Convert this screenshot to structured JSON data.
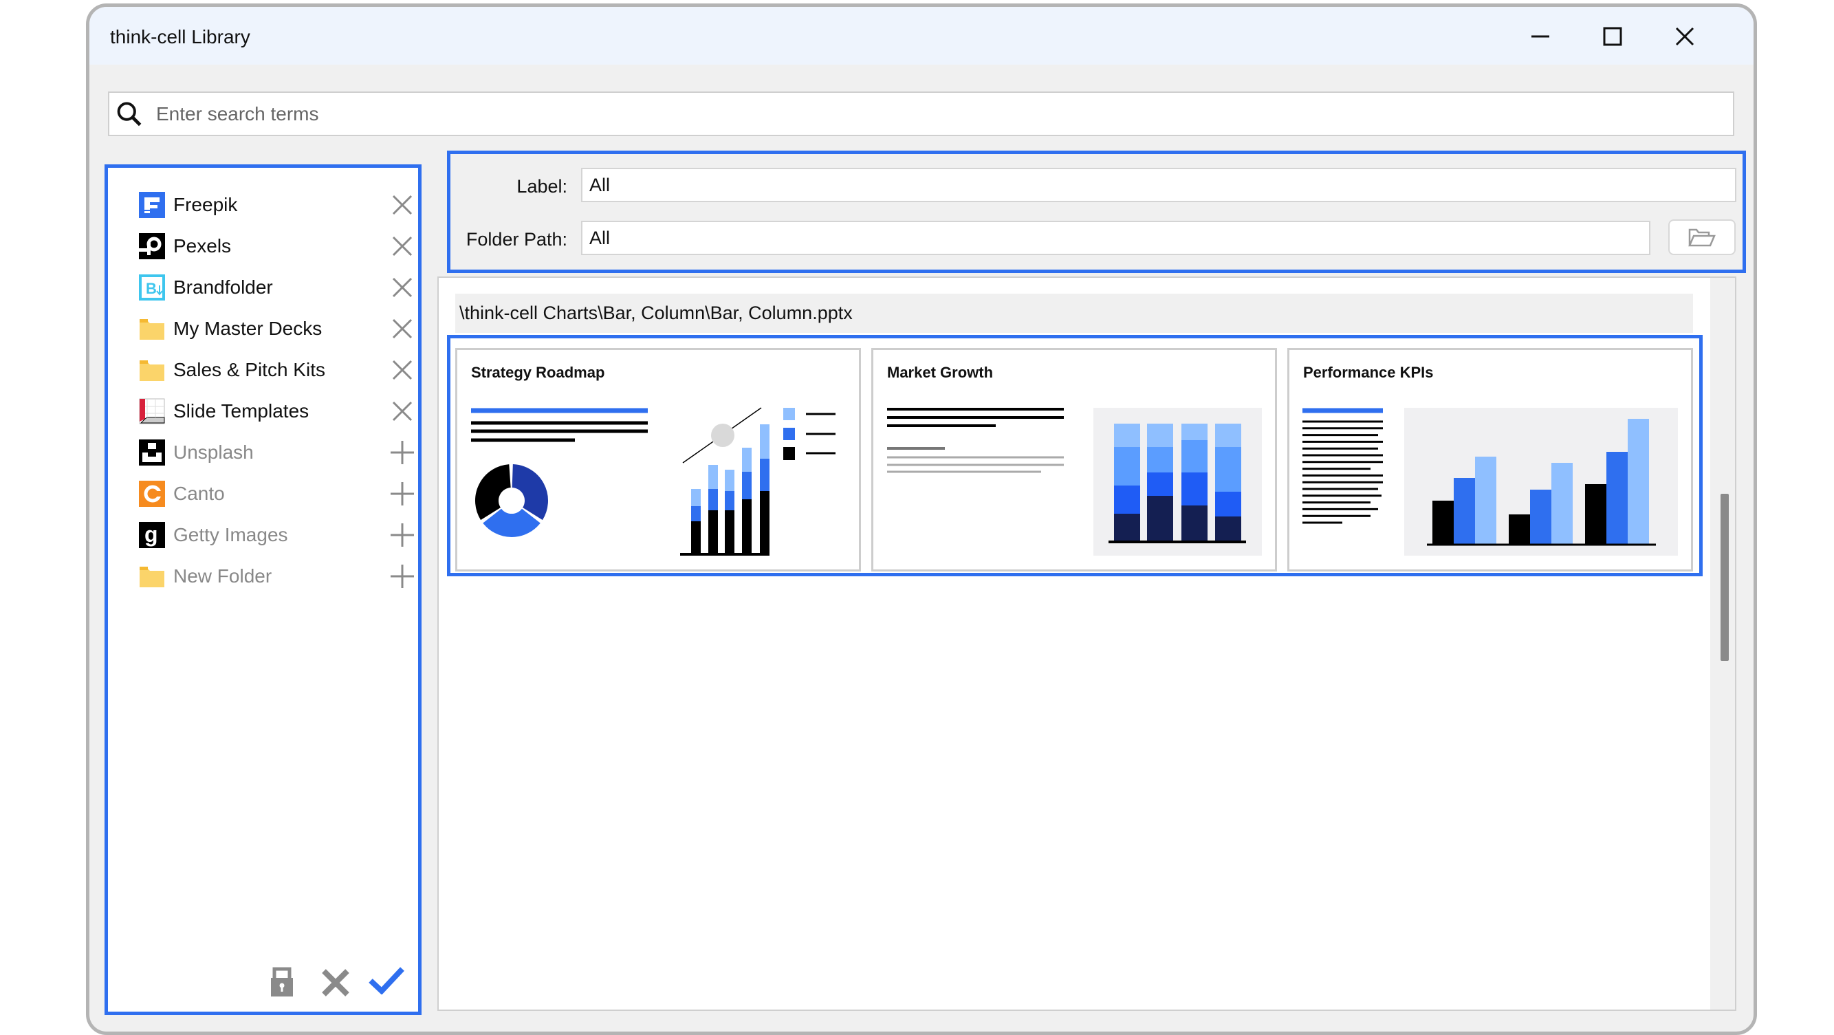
{
  "window": {
    "title": "think-cell Library",
    "controls": [
      "minimize-icon",
      "maximize-icon",
      "close-icon"
    ]
  },
  "search": {
    "placeholder": "Enter search terms",
    "value": ""
  },
  "sources": [
    {
      "label": "Freepik",
      "icon": "freepik-icon",
      "action": "remove",
      "enabled": true
    },
    {
      "label": "Pexels",
      "icon": "pexels-icon",
      "action": "remove",
      "enabled": true
    },
    {
      "label": "Brandfolder",
      "icon": "brandfolder-icon",
      "action": "remove",
      "enabled": true
    },
    {
      "label": "My Master Decks",
      "icon": "folder-icon",
      "action": "remove",
      "enabled": true
    },
    {
      "label": "Sales & Pitch Kits",
      "icon": "folder-icon",
      "action": "remove",
      "enabled": true
    },
    {
      "label": "Slide Templates",
      "icon": "slide-templates-icon",
      "action": "remove",
      "enabled": true
    },
    {
      "label": "Unsplash",
      "icon": "unsplash-icon",
      "action": "add",
      "enabled": false
    },
    {
      "label": "Canto",
      "icon": "canto-icon",
      "action": "add",
      "enabled": false
    },
    {
      "label": "Getty Images",
      "icon": "getty-images-icon",
      "action": "add",
      "enabled": false
    },
    {
      "label": "New Folder",
      "icon": "folder-icon",
      "action": "add",
      "enabled": false
    }
  ],
  "left_toolbar": [
    "lock-icon",
    "cancel-icon",
    "confirm-icon"
  ],
  "filters": {
    "label_caption": "Label:",
    "label_value": "All",
    "folder_caption": "Folder Path:",
    "folder_value": "All"
  },
  "path": "\\think-cell Charts\\Bar, Column\\Bar, Column.pptx",
  "cards": [
    {
      "title": "Strategy Roadmap"
    },
    {
      "title": "Market Growth"
    },
    {
      "title": "Performance KPIs"
    }
  ],
  "colors": {
    "accent": "#2f6fef",
    "light_blue": "#8fbfff",
    "mid_blue": "#5b9dff",
    "bright_blue": "#1f5cf5",
    "navy": "#141f52",
    "folder": "#fbd46a"
  }
}
